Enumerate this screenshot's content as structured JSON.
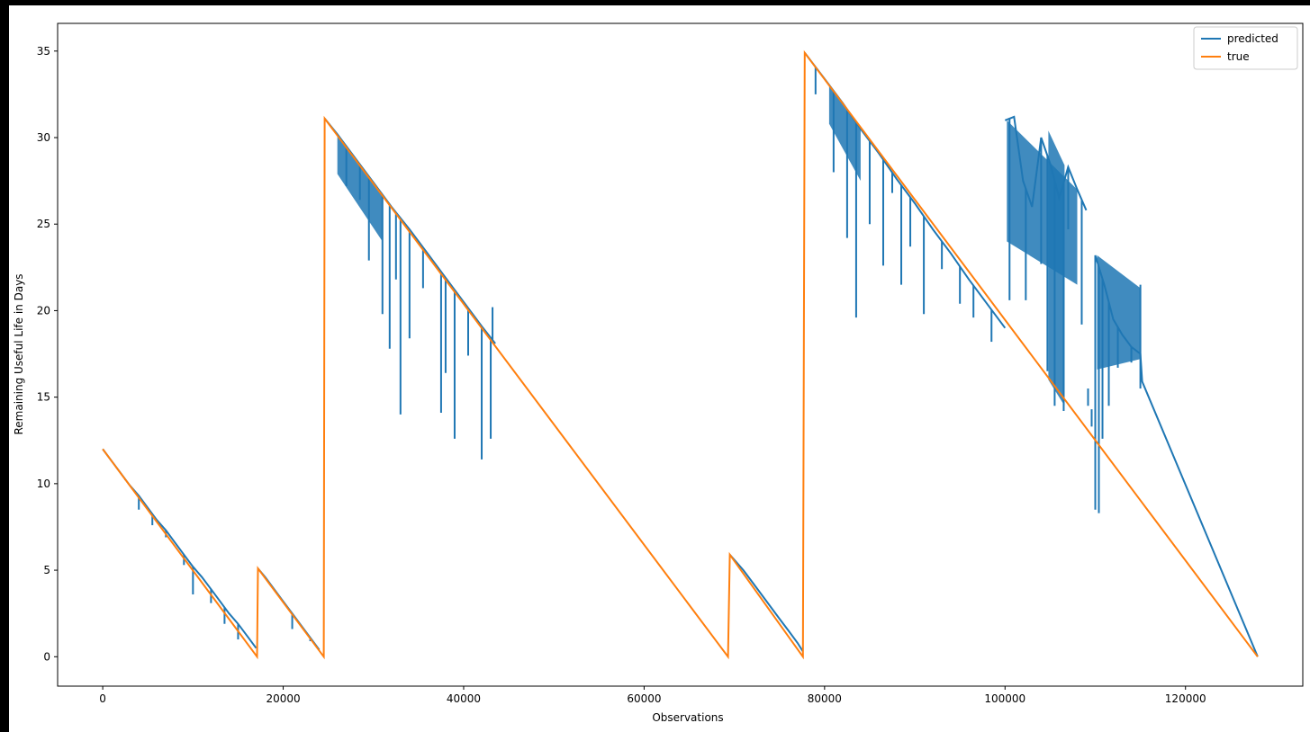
{
  "chart_data": {
    "type": "line",
    "title": "",
    "xlabel": "Observations",
    "ylabel": "Remaining Useful Life in Days",
    "xlim": [
      -5000,
      133000
    ],
    "ylim": [
      -1.7,
      36.6
    ],
    "x_ticks": [
      0,
      20000,
      40000,
      60000,
      80000,
      100000,
      120000
    ],
    "y_ticks": [
      0,
      5,
      10,
      15,
      20,
      25,
      30,
      35
    ],
    "grid": false,
    "legend_position": "top-right",
    "series": [
      {
        "name": "predicted",
        "color": "#1f77b4",
        "segments": [
          [
            [
              0,
              12.0
            ],
            [
              1000,
              11.3
            ],
            [
              2000,
              10.6
            ],
            [
              3000,
              9.9
            ],
            [
              4000,
              9.3
            ],
            [
              5000,
              8.6
            ],
            [
              6000,
              7.9
            ],
            [
              7000,
              7.3
            ],
            [
              8000,
              6.6
            ],
            [
              9000,
              5.9
            ],
            [
              10000,
              5.2
            ],
            [
              11000,
              4.6
            ],
            [
              12000,
              3.9
            ],
            [
              13000,
              3.2
            ],
            [
              14000,
              2.5
            ],
            [
              15000,
              1.9
            ],
            [
              16000,
              1.2
            ],
            [
              17000,
              0.5
            ]
          ],
          [
            [
              17200,
              5.1
            ],
            [
              18000,
              4.6
            ],
            [
              19000,
              3.9
            ],
            [
              20000,
              3.2
            ],
            [
              21000,
              2.5
            ],
            [
              22000,
              1.8
            ],
            [
              23000,
              1.1
            ],
            [
              24000,
              0.4
            ]
          ],
          [
            [
              24600,
              31.1
            ],
            [
              26000,
              30.2
            ],
            [
              28000,
              28.8
            ],
            [
              30000,
              27.4
            ],
            [
              32000,
              26.0
            ],
            [
              34000,
              24.7
            ],
            [
              36000,
              23.3
            ],
            [
              38000,
              21.9
            ],
            [
              40000,
              20.5
            ],
            [
              42000,
              19.1
            ],
            [
              43500,
              18.1
            ]
          ],
          [
            [
              69500,
              5.9
            ],
            [
              71000,
              5.0
            ],
            [
              72000,
              4.3
            ],
            [
              73000,
              3.6
            ],
            [
              74000,
              2.9
            ],
            [
              75000,
              2.2
            ],
            [
              76000,
              1.5
            ],
            [
              77000,
              0.8
            ],
            [
              77600,
              0.3
            ]
          ],
          [
            [
              77800,
              34.9
            ],
            [
              80000,
              33.4
            ],
            [
              82000,
              32.0
            ],
            [
              84000,
              30.5
            ],
            [
              86000,
              29.1
            ],
            [
              88000,
              27.6
            ],
            [
              90000,
              26.2
            ],
            [
              92000,
              24.7
            ],
            [
              94000,
              23.3
            ],
            [
              96000,
              21.8
            ],
            [
              98000,
              20.4
            ],
            [
              100000,
              19.0
            ]
          ],
          [
            [
              100000,
              31.0
            ],
            [
              101000,
              31.2
            ],
            [
              102000,
              27.5
            ],
            [
              103000,
              26.0
            ],
            [
              104000,
              30.0
            ],
            [
              105000,
              28.5
            ],
            [
              106000,
              26.5
            ],
            [
              107000,
              28.3
            ],
            [
              108000,
              27.0
            ],
            [
              109000,
              25.8
            ]
          ],
          [
            [
              110000,
              23.2
            ],
            [
              111000,
              21.5
            ],
            [
              112000,
              19.5
            ],
            [
              113000,
              18.6
            ],
            [
              114000,
              17.9
            ],
            [
              115000,
              17.5
            ],
            [
              115200,
              15.9
            ],
            [
              128000,
              0.0
            ]
          ]
        ],
        "spikes": [
          [
            2500,
            10.2
          ],
          [
            4000,
            8.5
          ],
          [
            5500,
            7.6
          ],
          [
            7000,
            6.9
          ],
          [
            9000,
            5.3
          ],
          [
            10000,
            3.6
          ],
          [
            12000,
            3.1
          ],
          [
            13500,
            1.9
          ],
          [
            15000,
            1.0
          ],
          [
            21000,
            1.6
          ],
          [
            23000,
            0.9
          ],
          [
            27000,
            27.2
          ],
          [
            28500,
            26.4
          ],
          [
            29500,
            22.9
          ],
          [
            31000,
            19.8
          ],
          [
            31800,
            17.8
          ],
          [
            32500,
            21.8
          ],
          [
            33000,
            14.0
          ],
          [
            34000,
            18.4
          ],
          [
            35500,
            21.3
          ],
          [
            37500,
            14.1
          ],
          [
            38000,
            16.4
          ],
          [
            39000,
            12.6
          ],
          [
            40500,
            17.4
          ],
          [
            42000,
            11.4
          ],
          [
            43000,
            12.6
          ],
          [
            43200,
            20.2
          ],
          [
            79000,
            32.5
          ],
          [
            81000,
            28.0
          ],
          [
            82500,
            24.2
          ],
          [
            83500,
            19.6
          ],
          [
            85000,
            25.0
          ],
          [
            86500,
            22.6
          ],
          [
            87500,
            26.8
          ],
          [
            88500,
            21.5
          ],
          [
            89500,
            23.7
          ],
          [
            91000,
            19.8
          ],
          [
            93000,
            22.4
          ],
          [
            95000,
            20.4
          ],
          [
            96500,
            19.6
          ],
          [
            98500,
            18.2
          ],
          [
            100500,
            20.6
          ],
          [
            102300,
            20.6
          ],
          [
            104000,
            22.7
          ],
          [
            104700,
            16.5
          ],
          [
            105500,
            14.5
          ],
          [
            106500,
            14.2
          ],
          [
            107000,
            24.7
          ],
          [
            108500,
            19.2
          ],
          [
            109200,
            14.5
          ],
          [
            109600,
            13.3
          ],
          [
            110000,
            8.5
          ],
          [
            110400,
            8.3
          ],
          [
            110800,
            12.6
          ],
          [
            111500,
            14.5
          ],
          [
            112500,
            16.7
          ],
          [
            114000,
            17.0
          ],
          [
            115000,
            15.5
          ],
          [
            115000,
            21.5
          ]
        ],
        "fill_bands": [
          [
            [
              26000,
              30.2
            ],
            [
              31000,
              26.7
            ],
            [
              31000,
              24.0
            ],
            [
              26000,
              27.9
            ]
          ],
          [
            [
              80500,
              33.0
            ],
            [
              84000,
              30.5
            ],
            [
              84000,
              27.5
            ],
            [
              80500,
              30.8
            ]
          ],
          [
            [
              100200,
              31.0
            ],
            [
              108000,
              27.0
            ],
            [
              108000,
              21.5
            ],
            [
              100200,
              24.0
            ]
          ],
          [
            [
              104800,
              30.4
            ],
            [
              106600,
              28.4
            ],
            [
              106600,
              14.5
            ],
            [
              104800,
              16.0
            ]
          ],
          [
            [
              110200,
              23.2
            ],
            [
              115000,
              21.3
            ],
            [
              115000,
              17.2
            ],
            [
              110200,
              16.6
            ]
          ]
        ]
      },
      {
        "name": "true",
        "color": "#ff7f0e",
        "points": [
          [
            0,
            12.0
          ],
          [
            17100,
            0.0
          ],
          [
            17200,
            5.1
          ],
          [
            24500,
            0.0
          ],
          [
            24600,
            31.1
          ],
          [
            69300,
            0.0
          ],
          [
            69500,
            5.9
          ],
          [
            77600,
            0.0
          ],
          [
            77800,
            34.9
          ],
          [
            128000,
            0.0
          ]
        ]
      }
    ]
  }
}
